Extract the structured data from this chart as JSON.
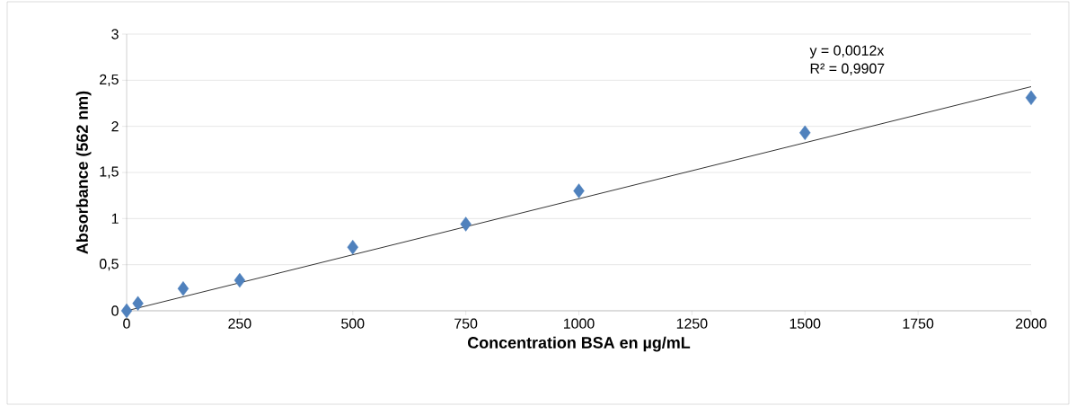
{
  "chart_data": {
    "type": "scatter",
    "xlabel": "Concentration BSA en µg/mL",
    "ylabel": "Absorbance (562 nm)",
    "annotations": [
      "y = 0,0012x",
      "R² = 0,9907"
    ],
    "x": [
      0,
      25,
      125,
      250,
      500,
      750,
      1000,
      1500,
      2000
    ],
    "series": [
      {
        "marker": "diamond",
        "color": "#4f81bd",
        "values": [
          0,
          0.08,
          0.24,
          0.33,
          0.69,
          0.94,
          1.3,
          1.93,
          2.31
        ]
      },
      {
        "type": "line",
        "marker": "none",
        "color": "#000000",
        "x": [
          0,
          2000
        ],
        "values": [
          0,
          2.43
        ]
      }
    ],
    "xlim": [
      0,
      2000
    ],
    "ylim": [
      0,
      3
    ],
    "xticks": [
      0,
      250,
      500,
      750,
      1000,
      1250,
      1500,
      1750,
      2000
    ],
    "yticks": [
      0,
      {
        "value": 0.5,
        "label": "0,5"
      },
      1,
      {
        "value": 1.5,
        "label": "1,5"
      },
      2,
      {
        "value": 2.5,
        "label": "2,5"
      },
      3
    ],
    "grid": "y"
  }
}
